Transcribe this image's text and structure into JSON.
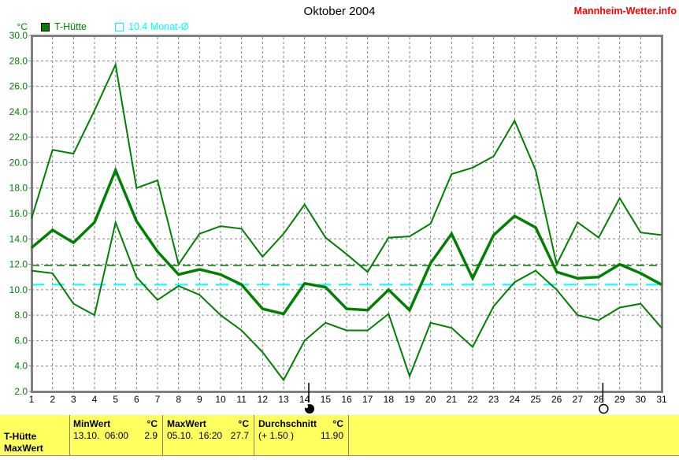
{
  "header": {
    "title": "Oktober 2004",
    "brand": "Mannheim-Wetter.info",
    "unit_label": "°C"
  },
  "legend": {
    "items": [
      {
        "label": "T-Hütte",
        "color": "#008000",
        "swatch": "filled"
      },
      {
        "label": "10.4 Monat-Ø",
        "color": "#00ffff",
        "swatch": "outline"
      }
    ]
  },
  "chart_data": {
    "type": "line",
    "title": "Oktober 2004",
    "ylabel": "°C",
    "ylim": [
      2.0,
      30.0
    ],
    "ytick_step": 2,
    "grid": true,
    "x_days": [
      1,
      2,
      3,
      4,
      5,
      6,
      7,
      8,
      9,
      10,
      11,
      12,
      13,
      14,
      15,
      16,
      17,
      18,
      19,
      20,
      21,
      22,
      23,
      24,
      25,
      26,
      27,
      28,
      29,
      30,
      31
    ],
    "series": [
      {
        "key": "max",
        "name": "T-Hütte Tagesmaximum",
        "color": "#008000",
        "width": 2,
        "values": [
          15.6,
          21.0,
          20.7,
          24.1,
          27.7,
          18.0,
          18.6,
          12.0,
          14.4,
          15.0,
          14.8,
          12.6,
          14.4,
          16.7,
          14.1,
          12.8,
          11.4,
          14.1,
          14.2,
          15.2,
          19.1,
          19.6,
          20.5,
          23.3,
          19.4,
          12.0,
          15.3,
          14.1,
          17.2,
          14.5,
          14.3
        ]
      },
      {
        "key": "mean",
        "name": "T-Hütte Tagesmittel",
        "color": "#008000",
        "width": 3.5,
        "values": [
          13.3,
          14.7,
          13.7,
          15.3,
          19.4,
          15.4,
          13.0,
          11.2,
          11.6,
          11.2,
          10.4,
          8.5,
          8.1,
          10.5,
          10.2,
          8.5,
          8.4,
          10.0,
          8.4,
          12.1,
          14.4,
          10.9,
          14.3,
          15.8,
          14.9,
          11.4,
          10.9,
          11.0,
          12.0,
          11.3,
          10.4
        ]
      },
      {
        "key": "min",
        "name": "T-Hütte Tagesminimum",
        "color": "#008000",
        "width": 2,
        "values": [
          11.5,
          11.3,
          8.9,
          8.0,
          15.3,
          11.0,
          9.2,
          10.3,
          9.6,
          8.0,
          6.8,
          5.1,
          2.9,
          6.0,
          7.4,
          6.8,
          6.8,
          8.1,
          3.2,
          7.4,
          7.0,
          5.5,
          8.7,
          10.6,
          11.5,
          10.0,
          8.0,
          7.6,
          8.6,
          8.9,
          7.0
        ]
      }
    ],
    "reference_lines": [
      {
        "name": "Durchschnitt",
        "value": 11.9,
        "color": "#008000",
        "dash": "10 6",
        "width": 1.5
      },
      {
        "name": "Monat-Ø",
        "value": 10.4,
        "color": "#00ffff",
        "dash": "16 10",
        "width": 2
      }
    ],
    "moon_phases": [
      {
        "day": 14.2,
        "phase": "new-moon"
      },
      {
        "day": 28.2,
        "phase": "full-moon"
      }
    ],
    "legend_position": "top-left"
  },
  "info_panel": {
    "sensor_label": "T-Hütte",
    "sensor_sublabel": "MaxWert",
    "columns": [
      {
        "header": "MinWert",
        "unit": "°C",
        "detail": "13.10.  06:00",
        "value": "2.9"
      },
      {
        "header": "MaxWert",
        "unit": "°C",
        "detail": "05.10.  16:20",
        "value": "27.7"
      },
      {
        "header": "Durchschnitt",
        "unit": "°C",
        "detail": "(+ 1.50 )",
        "value": "11.90"
      }
    ]
  },
  "colors": {
    "series_green": "#008000",
    "grid_gray": "#848484",
    "axis_gray": "#808080",
    "panel_bg": "#ffff60",
    "brand_red": "#ff0000",
    "cyan": "#00ffff",
    "tick_label_black": "#000000"
  }
}
